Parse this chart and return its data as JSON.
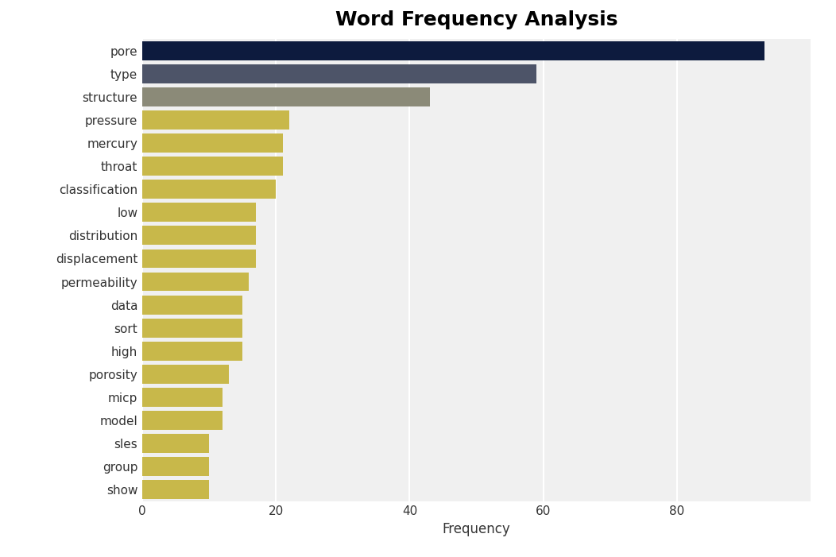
{
  "title": "Word Frequency Analysis",
  "categories": [
    "show",
    "group",
    "sles",
    "model",
    "micp",
    "porosity",
    "high",
    "sort",
    "data",
    "permeability",
    "displacement",
    "distribution",
    "low",
    "classification",
    "throat",
    "mercury",
    "pressure",
    "structure",
    "type",
    "pore"
  ],
  "values": [
    10,
    10,
    10,
    12,
    12,
    13,
    15,
    15,
    15,
    16,
    17,
    17,
    17,
    20,
    21,
    21,
    22,
    43,
    59,
    93
  ],
  "colors": [
    "#c8b84a",
    "#c8b84a",
    "#c8b84a",
    "#c8b84a",
    "#c8b84a",
    "#c8b84a",
    "#c8b84a",
    "#c8b84a",
    "#c8b84a",
    "#c8b84a",
    "#c8b84a",
    "#c8b84a",
    "#c8b84a",
    "#c8b84a",
    "#c8b84a",
    "#c8b84a",
    "#c8b84a",
    "#8b8a78",
    "#4d5468",
    "#0d1b3e"
  ],
  "xlabel": "Frequency",
  "figure_bg_color": "#ffffff",
  "plot_bg_color": "#f0f0f0",
  "title_fontsize": 18,
  "label_fontsize": 12,
  "tick_fontsize": 11,
  "xticks": [
    0,
    20,
    40,
    60,
    80
  ],
  "xlim": [
    0,
    100
  ],
  "bar_height": 0.82
}
